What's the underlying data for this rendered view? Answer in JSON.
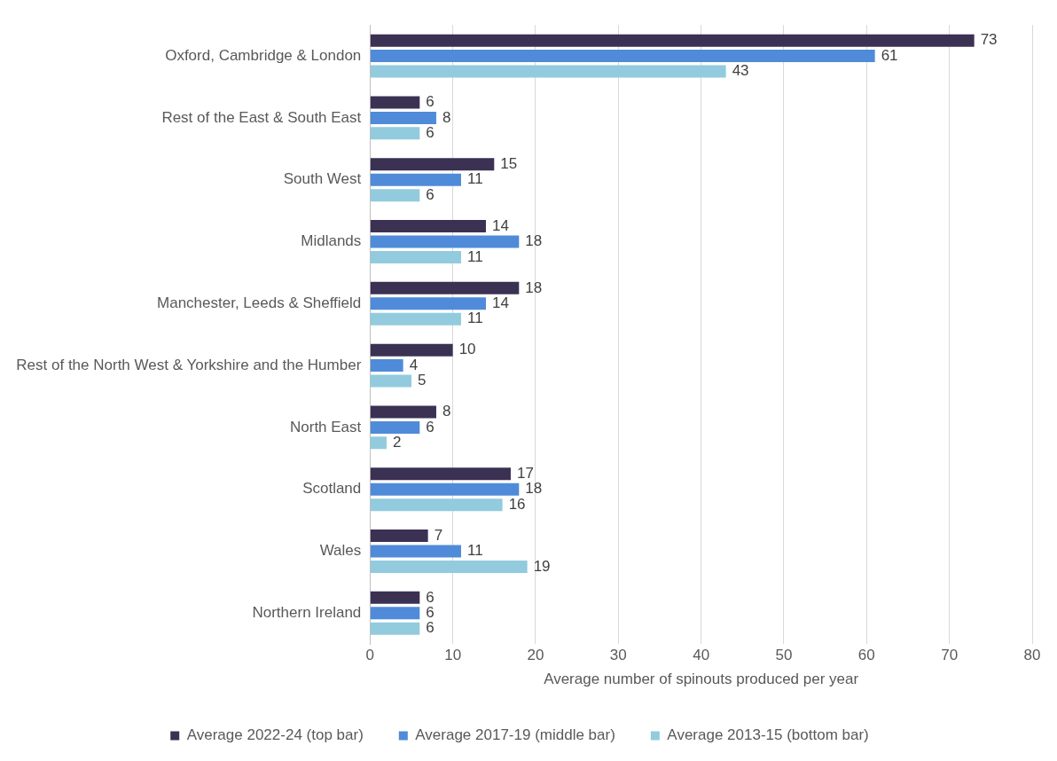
{
  "chart_data": {
    "type": "bar",
    "orientation": "horizontal",
    "categories": [
      "Oxford, Cambridge & London",
      "Rest of the East & South East",
      "South West",
      "Midlands",
      "Manchester, Leeds & Sheffield",
      "Rest of the North West & Yorkshire and the Humber",
      "North East",
      "Scotland",
      "Wales",
      "Northern Ireland"
    ],
    "series": [
      {
        "name": "Average 2022-24 (top bar)",
        "color": "#3b3153",
        "values": [
          73,
          6,
          15,
          14,
          18,
          10,
          8,
          17,
          7,
          6
        ]
      },
      {
        "name": "Average 2017-19 (middle bar)",
        "color": "#4f8bd8",
        "values": [
          61,
          8,
          11,
          18,
          14,
          4,
          6,
          18,
          11,
          6
        ]
      },
      {
        "name": "Average 2013-15 (bottom bar)",
        "color": "#92cbdd",
        "values": [
          43,
          6,
          6,
          11,
          11,
          5,
          2,
          16,
          19,
          6
        ]
      }
    ],
    "xlabel": "Average number of spinouts produced per year",
    "xlim": [
      0,
      80
    ],
    "xticks": [
      0,
      10,
      20,
      30,
      40,
      50,
      60,
      70,
      80
    ],
    "grid": "x",
    "legend": "bottom",
    "data_labels": true
  }
}
